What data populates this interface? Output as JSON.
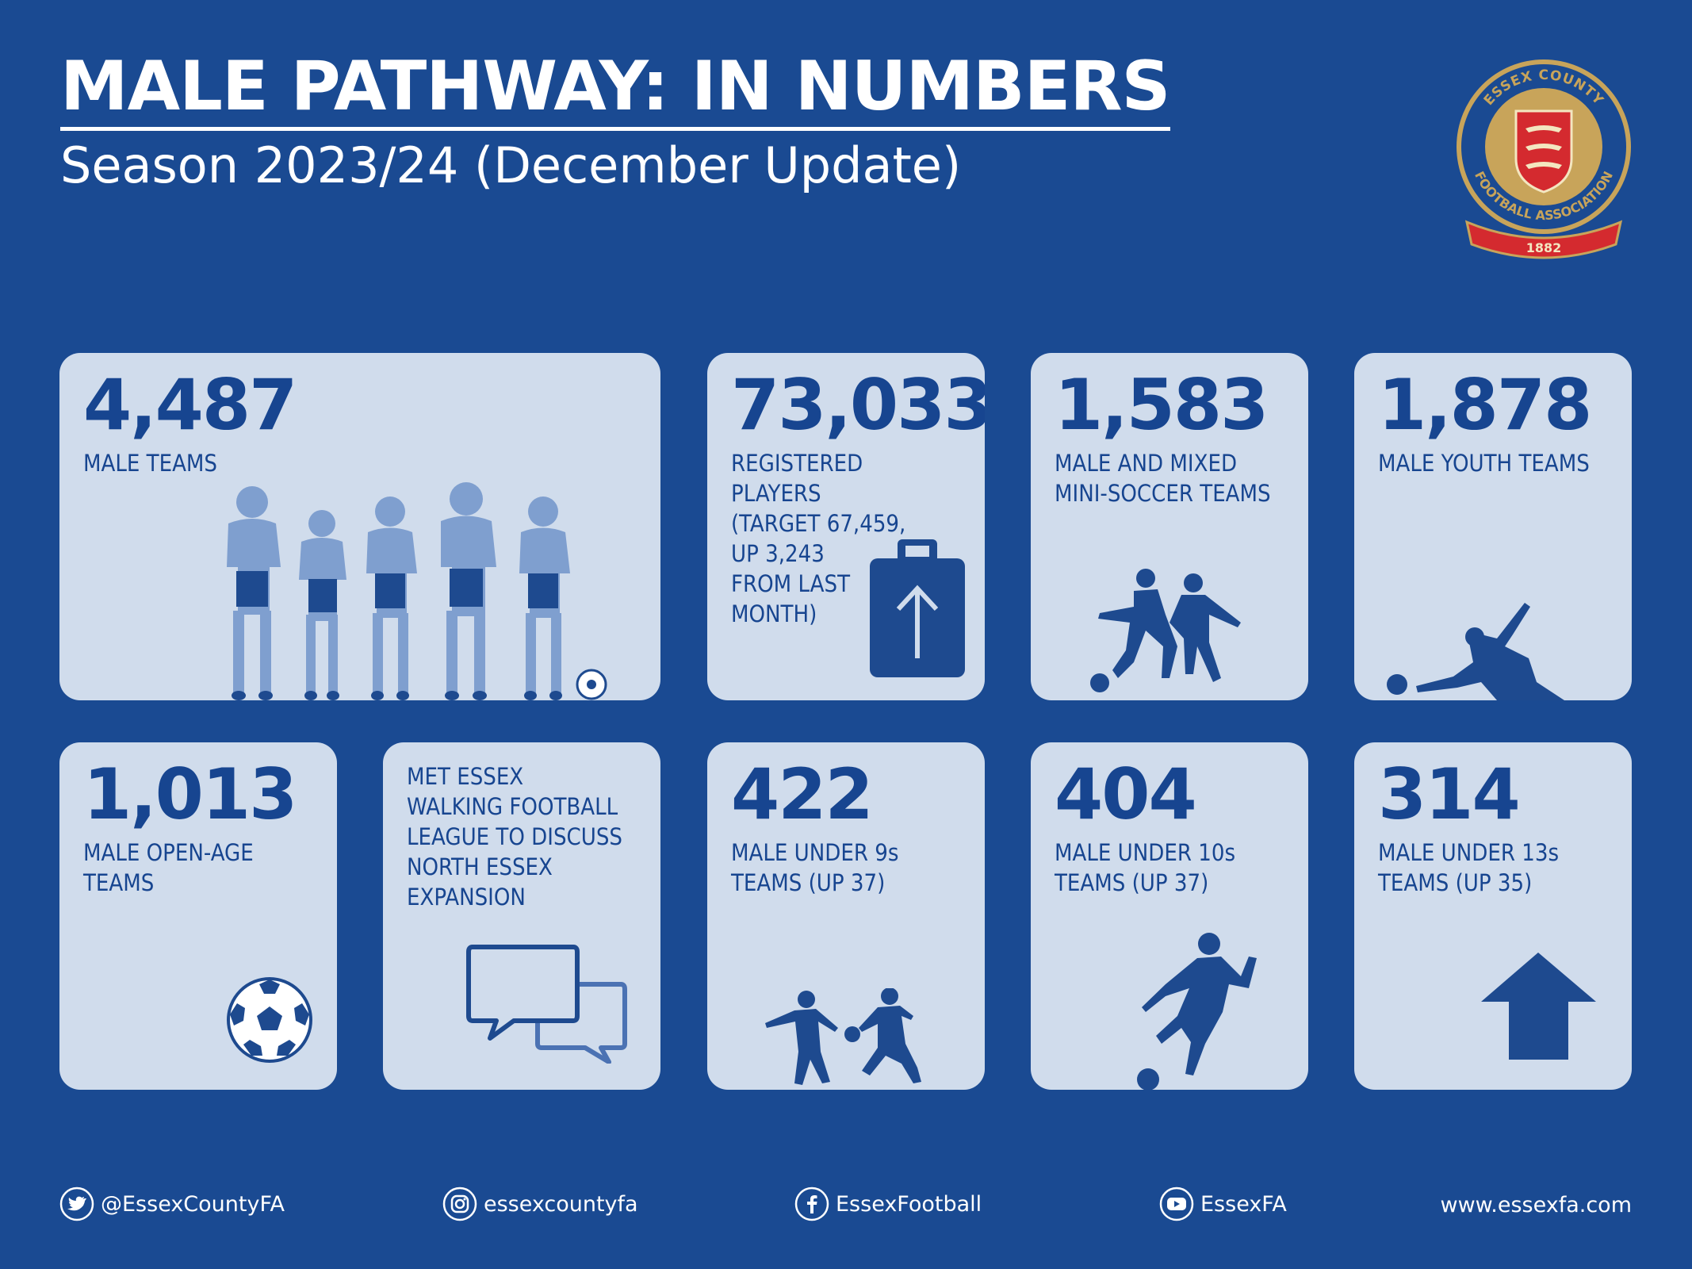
{
  "header": {
    "title": "MALE PATHWAY: IN NUMBERS",
    "subtitle": "Season 2023/24 (December Update)"
  },
  "logo": {
    "ring_top_text": "ESSEX COUNTY",
    "ring_bottom_text": "FOOTBALL ASSOCIATION",
    "year": "1882"
  },
  "colors": {
    "background": "#1a4a92",
    "card": "#d0dcec",
    "card_text": "#174590",
    "illustration_light": "#7f9fcf",
    "illustration_dark": "#1e4a8f",
    "logo_gold": "#c8a45a",
    "logo_red": "#d42a2f"
  },
  "cards": {
    "male_teams": {
      "number": "4,487",
      "label": "MALE TEAMS",
      "icon": "team-lineup-icon"
    },
    "registered_players": {
      "number": "73,033",
      "label": "REGISTERED\nPLAYERS\n(TARGET 67,459,\nUP 3,243\nFROM LAST\nMONTH)",
      "icon": "clipboard-up-arrow-icon"
    },
    "mini_soccer": {
      "number": "1,583",
      "label": "MALE AND MIXED\nMINI-SOCCER TEAMS",
      "icon": "players-tackling-icon"
    },
    "youth_teams": {
      "number": "1,878",
      "label": "MALE YOUTH TEAMS",
      "icon": "slide-tackle-icon"
    },
    "open_age": {
      "number": "1,013",
      "label": "MALE OPEN-AGE\nTEAMS",
      "icon": "football-icon"
    },
    "walking_football": {
      "label": "MET ESSEX\nWALKING FOOTBALL\nLEAGUE TO DISCUSS\nNORTH ESSEX\nEXPANSION",
      "icon": "chat-bubbles-icon"
    },
    "under_9s": {
      "number": "422",
      "label": "MALE UNDER 9s\nTEAMS (UP 37)",
      "icon": "kids-playing-icon"
    },
    "under_10s": {
      "number": "404",
      "label": "MALE UNDER 10s\nTEAMS (UP 37)",
      "icon": "player-kicking-icon"
    },
    "under_13s": {
      "number": "314",
      "label": "MALE UNDER 13s\nTEAMS (UP 35)",
      "icon": "up-arrow-icon"
    }
  },
  "footer": {
    "twitter": "@EssexCountyFA",
    "instagram": "essexcountyfa",
    "facebook": "EssexFootball",
    "youtube": "EssexFA",
    "website": "www.essexfa.com"
  }
}
